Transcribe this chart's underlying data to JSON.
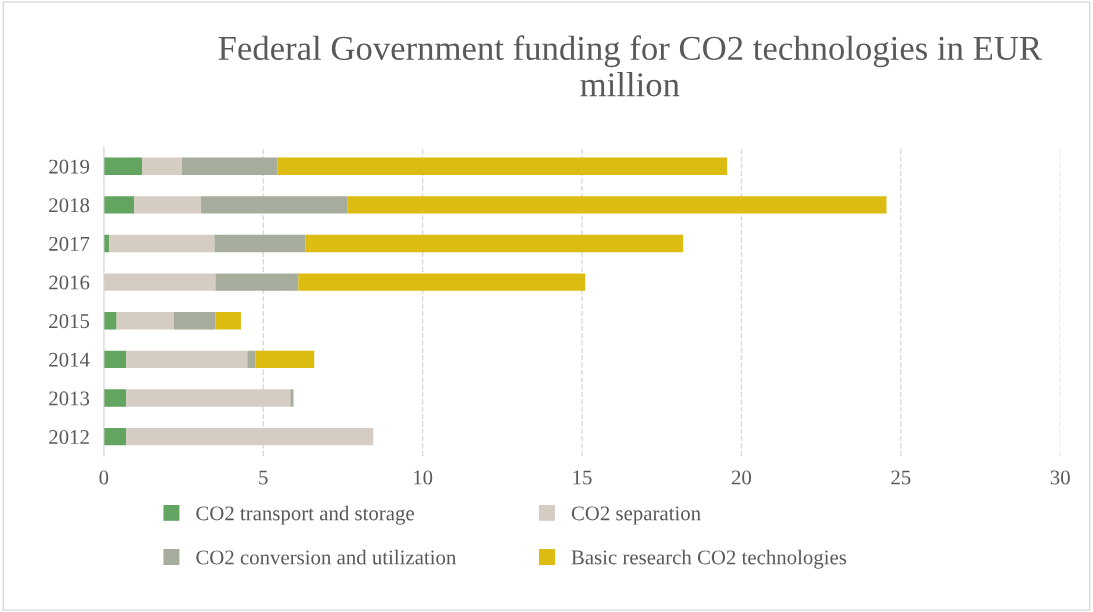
{
  "chart_data": {
    "type": "bar",
    "orientation": "horizontal",
    "stacked": true,
    "title": "Federal Government funding for CO2 technologies in EUR million",
    "categories": [
      "2019",
      "2018",
      "2017",
      "2016",
      "2015",
      "2014",
      "2013",
      "2012"
    ],
    "series": [
      {
        "name": "CO2 transport and storage",
        "color": "#62a460",
        "values": [
          1.2,
          0.95,
          0.17,
          0,
          0.4,
          0.7,
          0.7,
          0.7
        ]
      },
      {
        "name": "CO2 separation",
        "color": "#d5ccc3",
        "values": [
          1.25,
          2.1,
          3.3,
          3.5,
          1.8,
          3.8,
          5.15,
          7.75
        ]
      },
      {
        "name": "CO2 conversion and utilization",
        "color": "#a7ad9c",
        "values": [
          3.0,
          4.6,
          2.85,
          2.6,
          1.3,
          0.25,
          0.1,
          0
        ]
      },
      {
        "name": "Basic research CO2 technologies",
        "color": "#dcbc10",
        "values": [
          14.1,
          16.9,
          11.85,
          9.0,
          0.8,
          1.85,
          0,
          0
        ]
      }
    ],
    "xlim": [
      0,
      30
    ],
    "xticks": [
      0,
      5,
      10,
      15,
      20,
      25,
      30
    ],
    "grid": "x",
    "line_style": "dashed",
    "legend": "bottom"
  }
}
